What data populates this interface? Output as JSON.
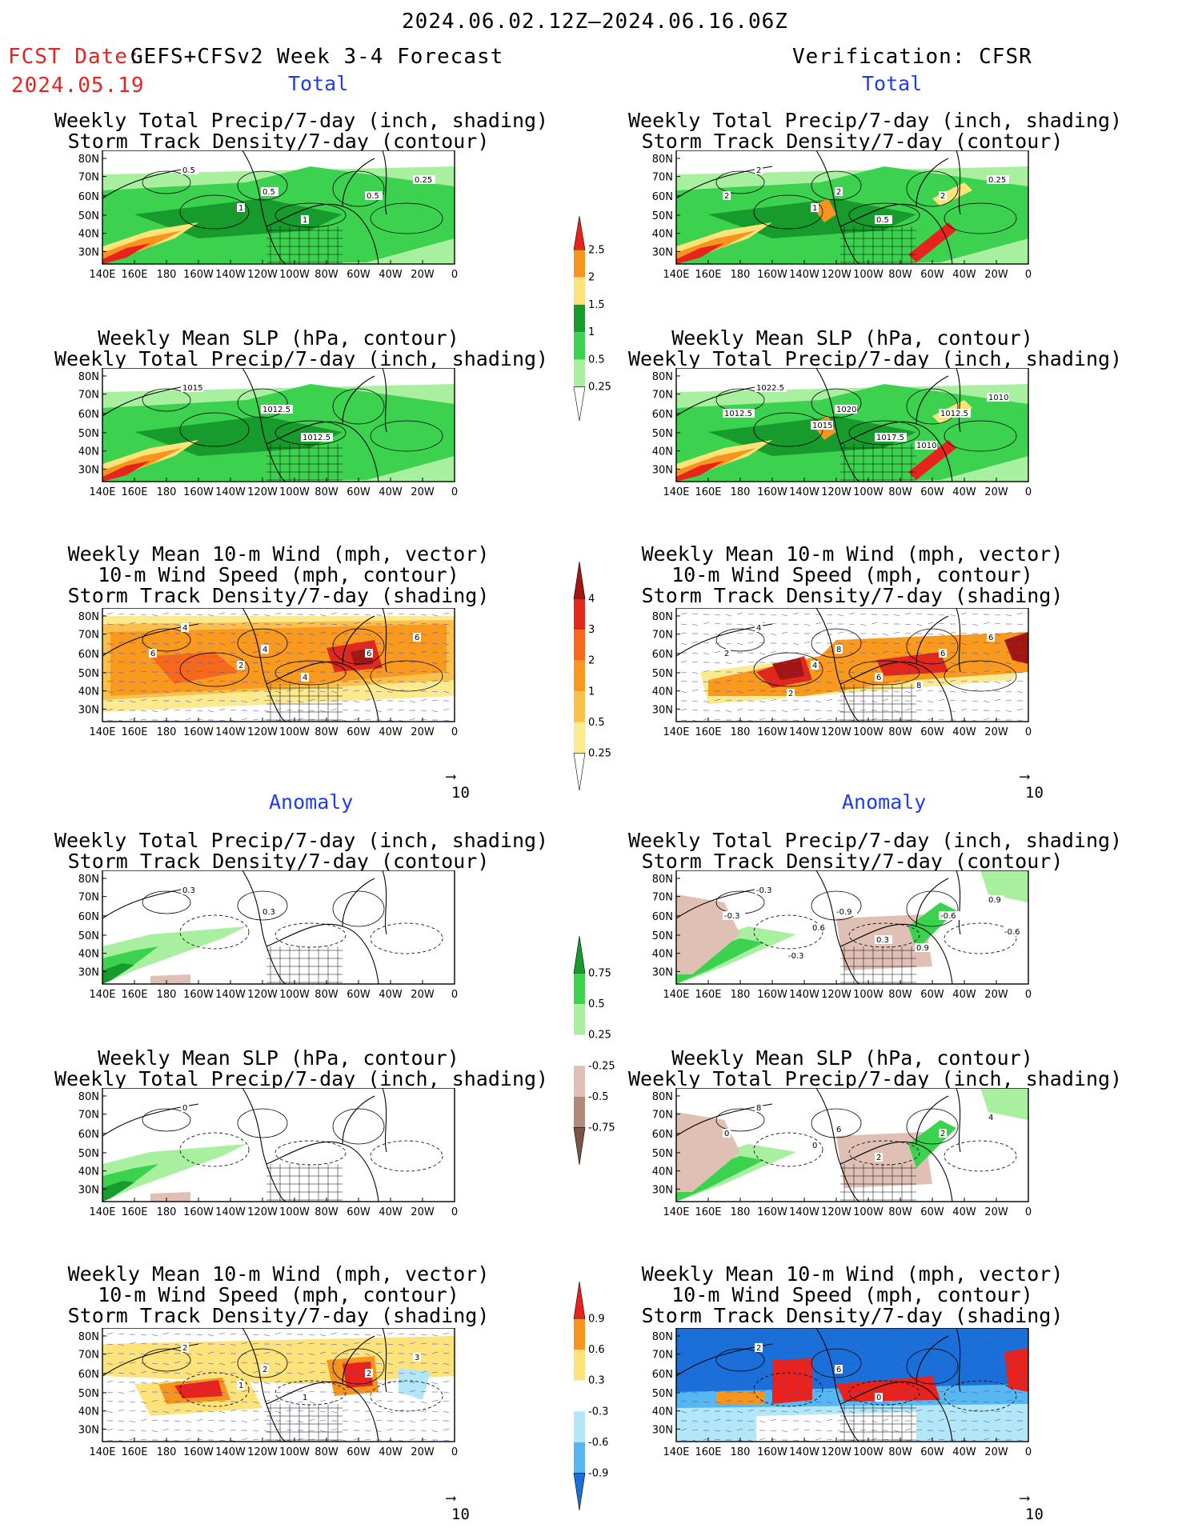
{
  "header": {
    "date_range": "2024.06.02.12Z—2024.06.16.06Z",
    "fcst_label": "FCST Date:",
    "model_label": "GEFS+CFSv2 Week 3-4 Forecast",
    "fcst_date": "2024.05.19",
    "verification_label": "Verification: CFSR"
  },
  "sections": {
    "total": "Total",
    "anomaly": "Anomaly"
  },
  "axes": {
    "lat_ticks": [
      "80N",
      "70N",
      "60N",
      "50N",
      "40N",
      "30N"
    ],
    "lon_ticks": [
      "140E",
      "160E",
      "180",
      "160W",
      "140W",
      "120W",
      "100W",
      "80W",
      "60W",
      "40W",
      "20W",
      "0"
    ]
  },
  "vector_ref": "10",
  "panel_titles": {
    "precip_storm": [
      "Weekly Total Precip/7-day (inch, shading)",
      "Storm Track Density/7-day (contour)"
    ],
    "slp_precip": [
      "Weekly Mean SLP (hPa, contour)",
      "Weekly Total Precip/7-day (inch, shading)"
    ],
    "wind_storm": [
      "Weekly Mean 10-m Wind (mph, vector)",
      "10-m Wind Speed (mph, contour)",
      "Storm Track Density/7-day (shading)"
    ]
  },
  "colorbars": {
    "total_precip": {
      "labels": [
        "2.5",
        "2",
        "1.5",
        "1",
        "0.5",
        "0.25"
      ],
      "colors": [
        "#e8231e",
        "#f7941d",
        "#fde37a",
        "#169b2c",
        "#3cd24f",
        "#a8f0a0",
        "#ffffff"
      ]
    },
    "total_storm": {
      "labels": [
        "4",
        "3",
        "2",
        "1",
        "0.5",
        "0.25"
      ],
      "colors": [
        "#a31510",
        "#e0281d",
        "#f7681d",
        "#f99a1f",
        "#fbc04a",
        "#fde98e",
        "#ffffff"
      ]
    },
    "anom_precip": {
      "labels": [
        "0.75",
        "0.5",
        "0.25",
        "-0.25",
        "-0.5",
        "-0.75"
      ],
      "colors": [
        "#169b2c",
        "#3cd24f",
        "#a8f0a0",
        "#ffffff",
        "#e0c0b4",
        "#b08a78",
        "#7a5444"
      ]
    },
    "anom_storm": {
      "labels": [
        "0.9",
        "0.6",
        "0.3",
        "-0.3",
        "-0.6",
        "-0.9"
      ],
      "colors": [
        "#e8231e",
        "#f7941d",
        "#fde37a",
        "#ffffff",
        "#b3e6f7",
        "#58b6f0",
        "#1a6fd9"
      ]
    }
  },
  "contour_labels": {
    "f_total_precip": [
      "0.5",
      "0.5",
      "1",
      "1",
      "0.5",
      "0.25"
    ],
    "v_total_precip": [
      "2",
      "2",
      "0.5",
      "1",
      "2",
      "0.25",
      "2"
    ],
    "f_total_slp": [
      "1015",
      "1012.5",
      "1012.5"
    ],
    "v_total_slp": [
      "1022.5",
      "1020",
      "1017.5",
      "1015",
      "1012.5",
      "1010",
      "1012.5",
      "1010"
    ],
    "f_total_wind": [
      "4",
      "4",
      "4",
      "2",
      "6",
      "6",
      "6"
    ],
    "v_total_wind": [
      "4",
      "8",
      "6",
      "4",
      "6",
      "6",
      "2",
      "8",
      "2"
    ],
    "f_anom_precip": [
      "0.3",
      "0.3"
    ],
    "v_anom_precip": [
      "-0.3",
      "-0.9",
      "0.3",
      "0.6",
      "-0.6",
      "0.9",
      "-0.3",
      "0.9",
      "-0.3",
      "-0.6"
    ],
    "f_anom_slp": [
      "0"
    ],
    "v_anom_slp": [
      "8",
      "6",
      "2",
      "0",
      "2",
      "4",
      "0"
    ],
    "f_anom_wind": [
      "2",
      "2",
      "1",
      "1",
      "2",
      "3"
    ],
    "v_anom_wind": [
      "2",
      "6",
      "0"
    ]
  }
}
